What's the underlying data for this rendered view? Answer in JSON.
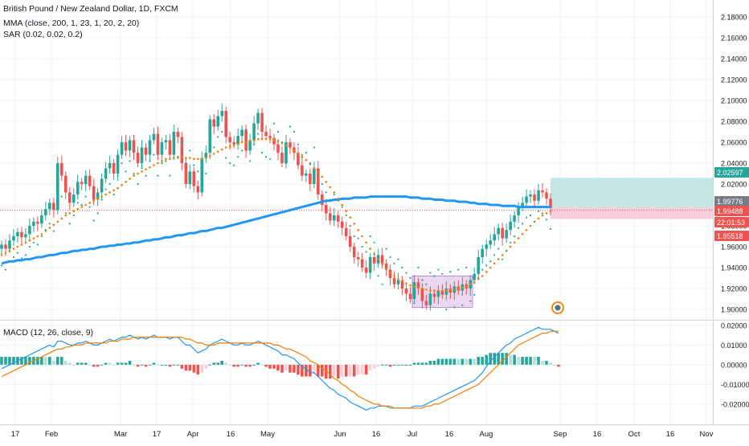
{
  "chart_data": {
    "type": "candlestick",
    "symbol_title": "British Pound / New Zealand Dollar, 1D, FXCM",
    "indicators": {
      "mma": "MMA (close, 200, 1, 23, 1, 20, 2, 20)",
      "sar": "SAR (0.02, 0.02, 0.2)",
      "macd": "MACD (12, 26, close, 9)"
    },
    "colors": {
      "up": "#26a69a",
      "down": "#ef5350",
      "ma200": "#2196f3",
      "ma20": "#f57c00",
      "sar": "#26a69a",
      "sar_down": "#26a69a",
      "macd": "#2196f3",
      "signal": "#f57c00",
      "grid": "#eef0f3",
      "current_price": "#787b86",
      "position_profit": "#b2dfdb",
      "position_loss": "#f8bbd0",
      "box": "#e1bee7"
    },
    "x_labels": [
      "17",
      "Feb",
      "Mar",
      "17",
      "Apr",
      "16",
      "May",
      "Jun",
      "16",
      "Jul",
      "16",
      "Aug",
      "Sep",
      "16",
      "Oct",
      "16",
      "Nov"
    ],
    "price_axis": {
      "ylim": [
        1.89,
        2.19
      ],
      "ticks": [
        "2.18000",
        "2.16000",
        "2.14000",
        "2.12000",
        "2.10000",
        "2.08000",
        "2.06000",
        "2.04000",
        "2.02000",
        "2.00000",
        "1.98000",
        "1.96000",
        "1.94000",
        "1.92000",
        "1.90000"
      ]
    },
    "price_labels": [
      {
        "value": "2.02597",
        "color": "#26a69a"
      },
      {
        "value": "1.99776",
        "color": "#787b86"
      },
      {
        "value": "1.99488",
        "color": "#ef5350"
      },
      {
        "value": "22:01:53",
        "color": "#ef5350"
      },
      {
        "value": "1.95518",
        "color": "#ef5350"
      }
    ],
    "macd_axis": {
      "ylim": [
        -0.027,
        0.022
      ],
      "ticks": [
        "0.02000",
        "0.01000",
        "0.00000",
        "-0.01000",
        "-0.02000"
      ]
    },
    "closes": [
      1.962,
      1.958,
      1.966,
      1.97,
      1.974,
      1.969,
      1.972,
      1.98,
      1.984,
      1.982,
      1.99,
      1.996,
      2.002,
      1.995,
      2.04,
      2.028,
      2.012,
      2.002,
      2.01,
      2.022,
      2.02,
      2.028,
      2.018,
      2.005,
      2.012,
      2.025,
      2.035,
      2.04,
      2.03,
      2.048,
      2.06,
      2.052,
      2.062,
      2.05,
      2.04,
      2.055,
      2.048,
      2.062,
      2.068,
      2.048,
      2.06,
      2.062,
      2.048,
      2.07,
      2.065,
      2.04,
      2.02,
      2.032,
      2.018,
      2.012,
      2.045,
      2.05,
      2.082,
      2.075,
      2.085,
      2.09,
      2.065,
      2.06,
      2.058,
      2.066,
      2.072,
      2.052,
      2.062,
      2.078,
      2.088,
      2.07,
      2.066,
      2.064,
      2.058,
      2.05,
      2.04,
      2.06,
      2.055,
      2.05,
      2.038,
      2.028,
      2.03,
      2.02,
      2.035,
      2.01,
      2.0,
      1.992,
      1.985,
      1.99,
      1.984,
      1.978,
      1.97,
      1.96,
      1.95,
      1.948,
      1.94,
      1.935,
      1.95,
      1.944,
      1.952,
      1.944,
      1.938,
      1.93,
      1.924,
      1.928,
      1.92,
      1.915,
      1.91,
      1.926,
      1.92,
      1.908,
      1.904,
      1.915,
      1.912,
      1.918,
      1.914,
      1.92,
      1.916,
      1.922,
      1.918,
      1.924,
      1.92,
      1.928,
      1.934,
      1.95,
      1.958,
      1.962,
      1.966,
      1.972,
      1.978,
      1.968,
      1.976,
      1.984,
      1.99,
      1.998,
      2.002,
      2.008,
      2.01,
      2.004,
      2.014,
      2.012,
      2.006,
      1.997
    ],
    "ma200": [
      1.944,
      1.945,
      1.946,
      1.946,
      1.947,
      1.947,
      1.948,
      1.948,
      1.949,
      1.95,
      1.95,
      1.951,
      1.952,
      1.952,
      1.953,
      1.954,
      1.954,
      1.955,
      1.956,
      1.956,
      1.957,
      1.957,
      1.958,
      1.958,
      1.959,
      1.96,
      1.96,
      1.961,
      1.961,
      1.962,
      1.962,
      1.963,
      1.963,
      1.964,
      1.964,
      1.965,
      1.966,
      1.966,
      1.967,
      1.967,
      1.968,
      1.969,
      1.969,
      1.97,
      1.971,
      1.971,
      1.972,
      1.973,
      1.973,
      1.974,
      1.975,
      1.975,
      1.976,
      1.977,
      1.978,
      1.978,
      1.979,
      1.98,
      1.981,
      1.982,
      1.983,
      1.984,
      1.985,
      1.986,
      1.987,
      1.988,
      1.989,
      1.99,
      1.991,
      1.992,
      1.993,
      1.994,
      1.995,
      1.996,
      1.997,
      1.998,
      1.999,
      2.0,
      2.001,
      2.002,
      2.003,
      2.004,
      2.004,
      2.005,
      2.005,
      2.006,
      2.006,
      2.006,
      2.007,
      2.007,
      2.007,
      2.007,
      2.008,
      2.008,
      2.008,
      2.008,
      2.008,
      2.008,
      2.008,
      2.008,
      2.008,
      2.008,
      2.007,
      2.007,
      2.007,
      2.006,
      2.006,
      2.006,
      2.005,
      2.005,
      2.005,
      2.004,
      2.004,
      2.004,
      2.003,
      2.003,
      2.003,
      2.002,
      2.002,
      2.001,
      2.001,
      2.001,
      2.0,
      2.0,
      2.0,
      1.999,
      1.999,
      1.999,
      1.999,
      1.998,
      1.998,
      1.998,
      1.998,
      1.998,
      1.998,
      1.998,
      1.998,
      1.998
    ],
    "ma20": [
      1.952,
      1.954,
      1.956,
      1.958,
      1.96,
      1.962,
      1.964,
      1.966,
      1.968,
      1.97,
      1.972,
      1.975,
      1.978,
      1.981,
      1.984,
      1.987,
      1.99,
      1.992,
      1.994,
      1.996,
      1.998,
      2.0,
      2.002,
      2.004,
      2.006,
      2.008,
      2.01,
      2.012,
      2.014,
      2.016,
      2.019,
      2.022,
      2.025,
      2.028,
      2.03,
      2.032,
      2.034,
      2.036,
      2.038,
      2.04,
      2.042,
      2.044,
      2.044,
      2.045,
      2.046,
      2.046,
      2.045,
      2.045,
      2.044,
      2.044,
      2.044,
      2.045,
      2.047,
      2.049,
      2.051,
      2.053,
      2.055,
      2.056,
      2.057,
      2.058,
      2.06,
      2.06,
      2.061,
      2.062,
      2.063,
      2.063,
      2.063,
      2.063,
      2.062,
      2.061,
      2.059,
      2.057,
      2.055,
      2.052,
      2.049,
      2.046,
      2.043,
      2.039,
      2.035,
      2.031,
      2.027,
      2.022,
      2.017,
      2.012,
      2.006,
      2.0,
      1.994,
      1.988,
      1.982,
      1.976,
      1.97,
      1.964,
      1.958,
      1.953,
      1.948,
      1.943,
      1.939,
      1.935,
      1.932,
      1.929,
      1.927,
      1.925,
      1.923,
      1.922,
      1.921,
      1.92,
      1.919,
      1.918,
      1.918,
      1.918,
      1.918,
      1.918,
      1.919,
      1.919,
      1.92,
      1.921,
      1.922,
      1.924,
      1.926,
      1.929,
      1.932,
      1.936,
      1.94,
      1.944,
      1.948,
      1.952,
      1.956,
      1.96,
      1.964,
      1.968,
      1.972,
      1.976,
      1.98,
      1.984,
      1.987,
      1.99,
      1.992,
      1.994
    ],
    "macd": [
      -0.002,
      -0.001,
      0.0,
      0.001,
      0.002,
      0.003,
      0.004,
      0.005,
      0.006,
      0.007,
      0.008,
      0.009,
      0.01,
      0.009,
      0.012,
      0.012,
      0.011,
      0.01,
      0.01,
      0.011,
      0.011,
      0.012,
      0.011,
      0.01,
      0.01,
      0.011,
      0.012,
      0.013,
      0.012,
      0.013,
      0.014,
      0.014,
      0.015,
      0.014,
      0.013,
      0.014,
      0.013,
      0.014,
      0.015,
      0.014,
      0.014,
      0.014,
      0.013,
      0.014,
      0.014,
      0.012,
      0.01,
      0.01,
      0.008,
      0.006,
      0.007,
      0.008,
      0.01,
      0.011,
      0.012,
      0.013,
      0.012,
      0.011,
      0.01,
      0.01,
      0.011,
      0.01,
      0.01,
      0.011,
      0.012,
      0.011,
      0.01,
      0.009,
      0.008,
      0.007,
      0.005,
      0.005,
      0.004,
      0.003,
      0.001,
      -0.001,
      -0.002,
      -0.004,
      -0.004,
      -0.006,
      -0.008,
      -0.01,
      -0.012,
      -0.013,
      -0.015,
      -0.016,
      -0.017,
      -0.019,
      -0.02,
      -0.021,
      -0.022,
      -0.023,
      -0.022,
      -0.022,
      -0.021,
      -0.021,
      -0.021,
      -0.022,
      -0.022,
      -0.022,
      -0.022,
      -0.022,
      -0.022,
      -0.021,
      -0.021,
      -0.021,
      -0.02,
      -0.019,
      -0.018,
      -0.017,
      -0.016,
      -0.015,
      -0.014,
      -0.013,
      -0.012,
      -0.011,
      -0.01,
      -0.009,
      -0.008,
      -0.006,
      -0.004,
      -0.001,
      0.002,
      0.004,
      0.006,
      0.008,
      0.01,
      0.011,
      0.013,
      0.014,
      0.015,
      0.016,
      0.017,
      0.018,
      0.019,
      0.018,
      0.018,
      0.018,
      0.017,
      0.016
    ],
    "signal": [
      -0.006,
      -0.005,
      -0.004,
      -0.003,
      -0.002,
      -0.001,
      0.0,
      0.001,
      0.002,
      0.003,
      0.004,
      0.005,
      0.006,
      0.007,
      0.008,
      0.008,
      0.009,
      0.009,
      0.01,
      0.01,
      0.01,
      0.011,
      0.011,
      0.011,
      0.011,
      0.011,
      0.011,
      0.012,
      0.012,
      0.012,
      0.013,
      0.013,
      0.013,
      0.014,
      0.014,
      0.014,
      0.014,
      0.014,
      0.014,
      0.014,
      0.014,
      0.014,
      0.014,
      0.014,
      0.014,
      0.014,
      0.013,
      0.013,
      0.012,
      0.011,
      0.011,
      0.01,
      0.01,
      0.01,
      0.011,
      0.011,
      0.011,
      0.011,
      0.011,
      0.011,
      0.011,
      0.011,
      0.011,
      0.011,
      0.011,
      0.011,
      0.011,
      0.011,
      0.01,
      0.01,
      0.009,
      0.008,
      0.008,
      0.007,
      0.006,
      0.005,
      0.004,
      0.002,
      0.001,
      0.0,
      -0.002,
      -0.003,
      -0.005,
      -0.007,
      -0.008,
      -0.01,
      -0.011,
      -0.013,
      -0.014,
      -0.016,
      -0.017,
      -0.018,
      -0.019,
      -0.02,
      -0.02,
      -0.021,
      -0.021,
      -0.021,
      -0.022,
      -0.022,
      -0.022,
      -0.022,
      -0.022,
      -0.022,
      -0.022,
      -0.022,
      -0.021,
      -0.021,
      -0.02,
      -0.02,
      -0.019,
      -0.018,
      -0.017,
      -0.016,
      -0.015,
      -0.014,
      -0.013,
      -0.012,
      -0.011,
      -0.01,
      -0.008,
      -0.006,
      -0.004,
      -0.002,
      0.0,
      0.002,
      0.004,
      0.006,
      0.008,
      0.01,
      0.011,
      0.012,
      0.013,
      0.014,
      0.015,
      0.016,
      0.016,
      0.017,
      0.017,
      0.017
    ]
  }
}
